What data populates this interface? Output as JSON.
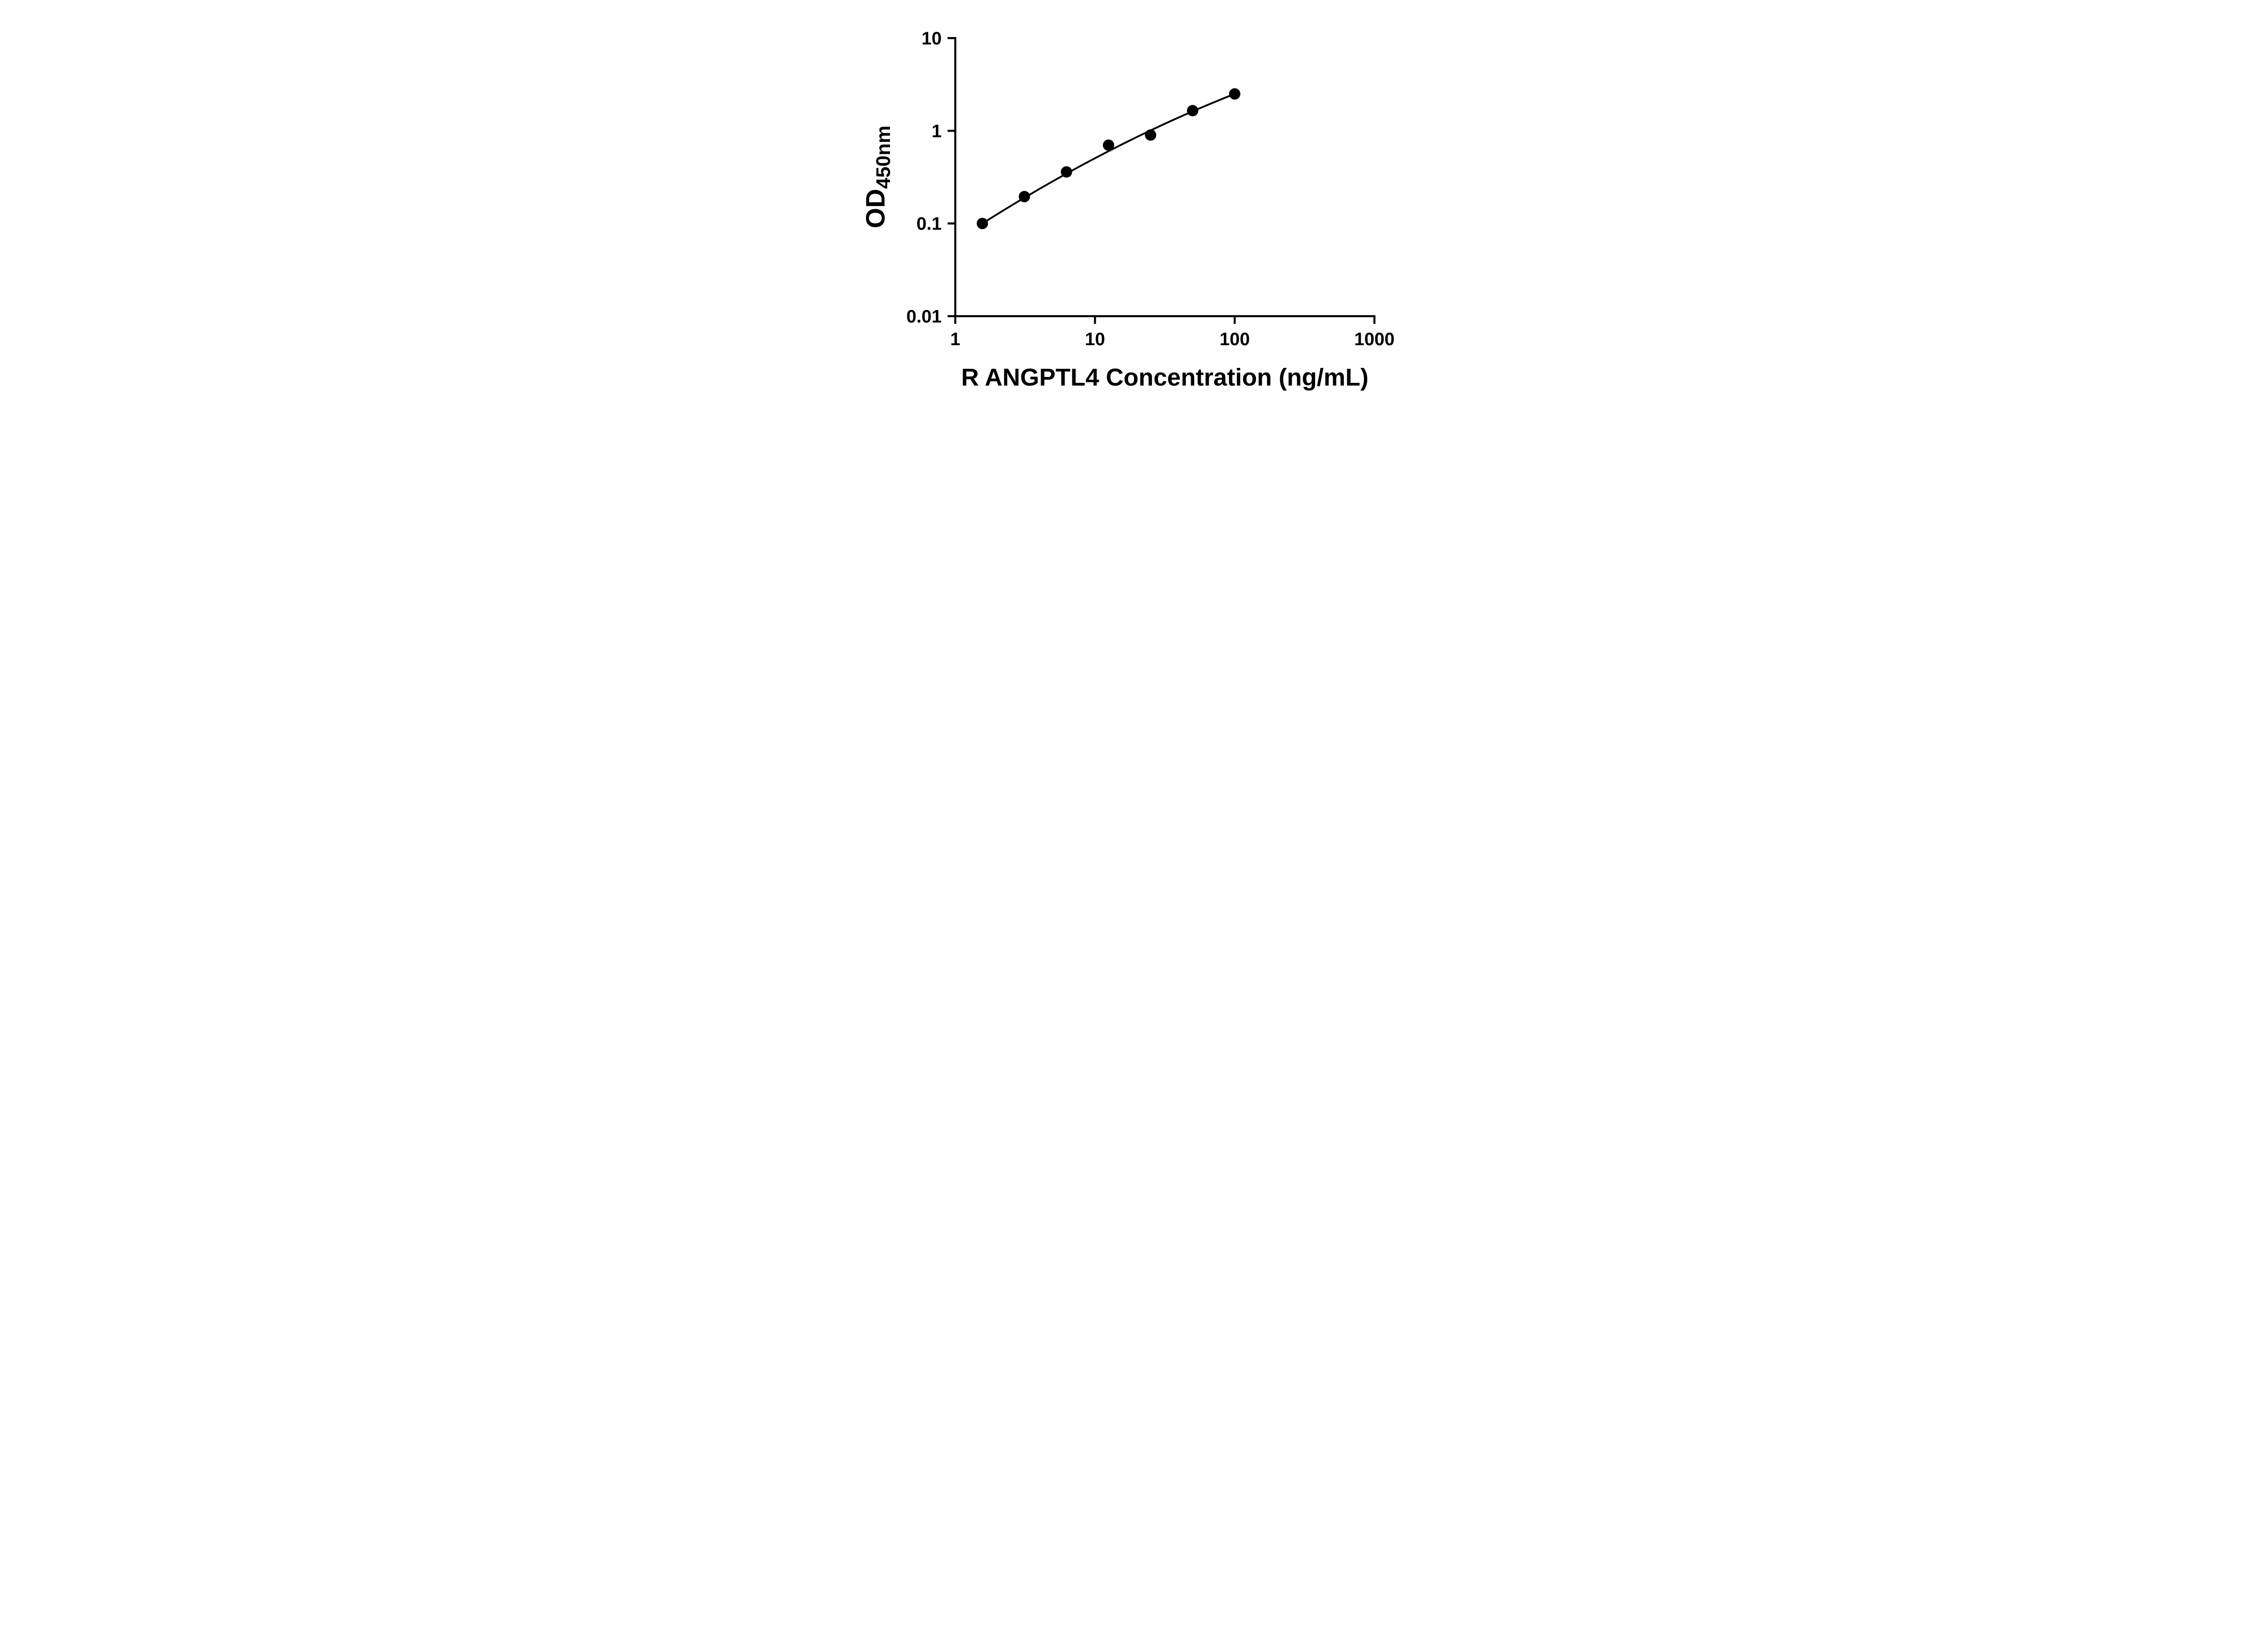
{
  "page": {
    "background": "#ffffff",
    "description": "ELISA standard curve, log-log scatter plot with fitted curve"
  },
  "chart_data": {
    "type": "scatter",
    "title": "",
    "xlabel": "R ANGPTL4 Concentration (ng/mL)",
    "ylabel_main": "OD",
    "ylabel_sub": "450nm",
    "x_scale": "log10",
    "y_scale": "log10",
    "xlim": [
      1,
      1000
    ],
    "ylim": [
      0.01,
      10
    ],
    "grid": false,
    "legend": null,
    "x_ticks": [
      {
        "value": 1,
        "label": "1"
      },
      {
        "value": 10,
        "label": "10"
      },
      {
        "value": 100,
        "label": "100"
      },
      {
        "value": 1000,
        "label": "1000"
      }
    ],
    "y_ticks": [
      {
        "value": 0.01,
        "label": "0.01"
      },
      {
        "value": 0.1,
        "label": "0.1"
      },
      {
        "value": 1,
        "label": "1"
      },
      {
        "value": 10,
        "label": "10"
      }
    ],
    "points": [
      {
        "x": 1.5625,
        "y": 0.1
      },
      {
        "x": 3.125,
        "y": 0.195
      },
      {
        "x": 6.25,
        "y": 0.36
      },
      {
        "x": 12.5,
        "y": 0.7
      },
      {
        "x": 25,
        "y": 0.9
      },
      {
        "x": 50,
        "y": 1.65
      },
      {
        "x": 100,
        "y": 2.5
      }
    ],
    "fit_curve": {
      "model": "log10(y) = a + b*log10(x) + c*log10(x)^2",
      "a": -1.1887,
      "b": 0.992,
      "c": -0.0993,
      "x_range": [
        1.5625,
        100
      ]
    },
    "style": {
      "axis_color": "#000000",
      "marker_color": "#000000",
      "line_color": "#000000",
      "marker_radius": 12.5,
      "axis_stroke_width": 4.5,
      "curve_stroke_width": 4
    }
  }
}
